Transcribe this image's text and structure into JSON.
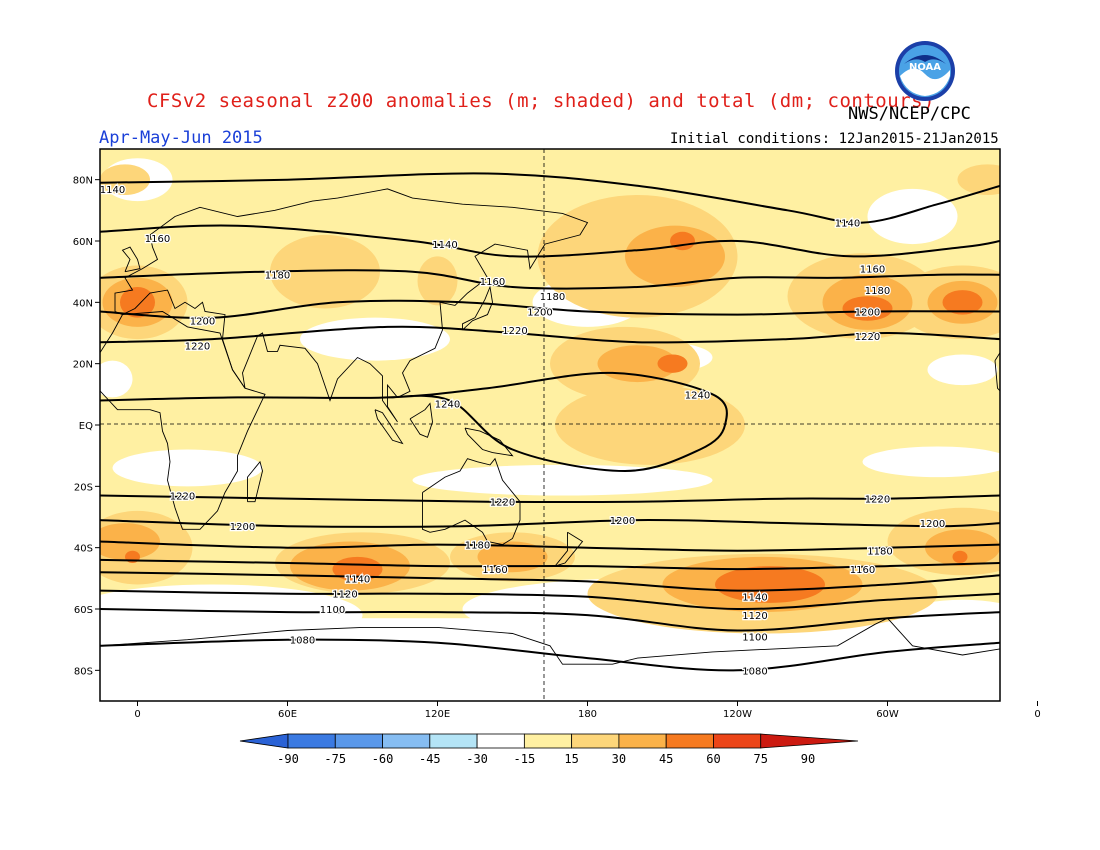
{
  "title": "CFSv2 seasonal z200 anomalies (m; shaded) and total (dm; contours)",
  "agency": "NWS/NCEP/CPC",
  "logo_text": "NOAA",
  "season": "Apr-May-Jun 2015",
  "initial_conditions": "Initial conditions: 12Jan2015-21Jan2015",
  "lat_labels": [
    "80N",
    "60N",
    "40N",
    "20N",
    "EQ",
    "20S",
    "40S",
    "60S",
    "80S"
  ],
  "lon_labels": [
    "0",
    "60E",
    "120E",
    "180",
    "120W",
    "60W",
    "0"
  ],
  "colorbar": {
    "labels": [
      "-90",
      "-75",
      "-60",
      "-45",
      "-30",
      "-15",
      "15",
      "30",
      "45",
      "60",
      "75",
      "90"
    ],
    "colors": [
      "#2a62d6",
      "#3b7ae2",
      "#5a98ea",
      "#86bdf2",
      "#b4e4f6",
      "#ffffff",
      "#fff0a2",
      "#fdd67a",
      "#fbb249",
      "#f67a20",
      "#ec4518",
      "#cc1a10"
    ]
  },
  "contour_labels": [
    {
      "text": "1140",
      "lon": -10,
      "lat": 77
    },
    {
      "text": "1160",
      "lon": 8,
      "lat": 61
    },
    {
      "text": "1180",
      "lon": 56,
      "lat": 49
    },
    {
      "text": "1200",
      "lon": 26,
      "lat": 34
    },
    {
      "text": "1220",
      "lon": 24,
      "lat": 26
    },
    {
      "text": "1140",
      "lon": 123,
      "lat": 59
    },
    {
      "text": "1160",
      "lon": 142,
      "lat": 47
    },
    {
      "text": "1180",
      "lon": 166,
      "lat": 42
    },
    {
      "text": "1200",
      "lon": 161,
      "lat": 37
    },
    {
      "text": "1220",
      "lon": 151,
      "lat": 31
    },
    {
      "text": "1240",
      "lon": 124,
      "lat": 7
    },
    {
      "text": "1240",
      "lon": 224,
      "lat": 10
    },
    {
      "text": "1140",
      "lon": 284,
      "lat": 66
    },
    {
      "text": "1160",
      "lon": 294,
      "lat": 51
    },
    {
      "text": "1180",
      "lon": 296,
      "lat": 44
    },
    {
      "text": "1200",
      "lon": 292,
      "lat": 37
    },
    {
      "text": "1220",
      "lon": 292,
      "lat": 29
    },
    {
      "text": "1220",
      "lon": 18,
      "lat": -23
    },
    {
      "text": "1200",
      "lon": 42,
      "lat": -33
    },
    {
      "text": "1220",
      "lon": 146,
      "lat": -25
    },
    {
      "text": "1200",
      "lon": 194,
      "lat": -31
    },
    {
      "text": "1180",
      "lon": 136,
      "lat": -39
    },
    {
      "text": "1160",
      "lon": 143,
      "lat": -47
    },
    {
      "text": "1140",
      "lon": 88,
      "lat": -50
    },
    {
      "text": "1120",
      "lon": 83,
      "lat": -55
    },
    {
      "text": "1100",
      "lon": 78,
      "lat": -60
    },
    {
      "text": "1080",
      "lon": 66,
      "lat": -70
    },
    {
      "text": "1220",
      "lon": 296,
      "lat": -24
    },
    {
      "text": "1200",
      "lon": 318,
      "lat": -32
    },
    {
      "text": "1180",
      "lon": 297,
      "lat": -41
    },
    {
      "text": "1160",
      "lon": 290,
      "lat": -47
    },
    {
      "text": "1140",
      "lon": 247,
      "lat": -56
    },
    {
      "text": "1120",
      "lon": 247,
      "lat": -62
    },
    {
      "text": "1100",
      "lon": 247,
      "lat": -69
    },
    {
      "text": "1080",
      "lon": 247,
      "lat": -80
    }
  ]
}
